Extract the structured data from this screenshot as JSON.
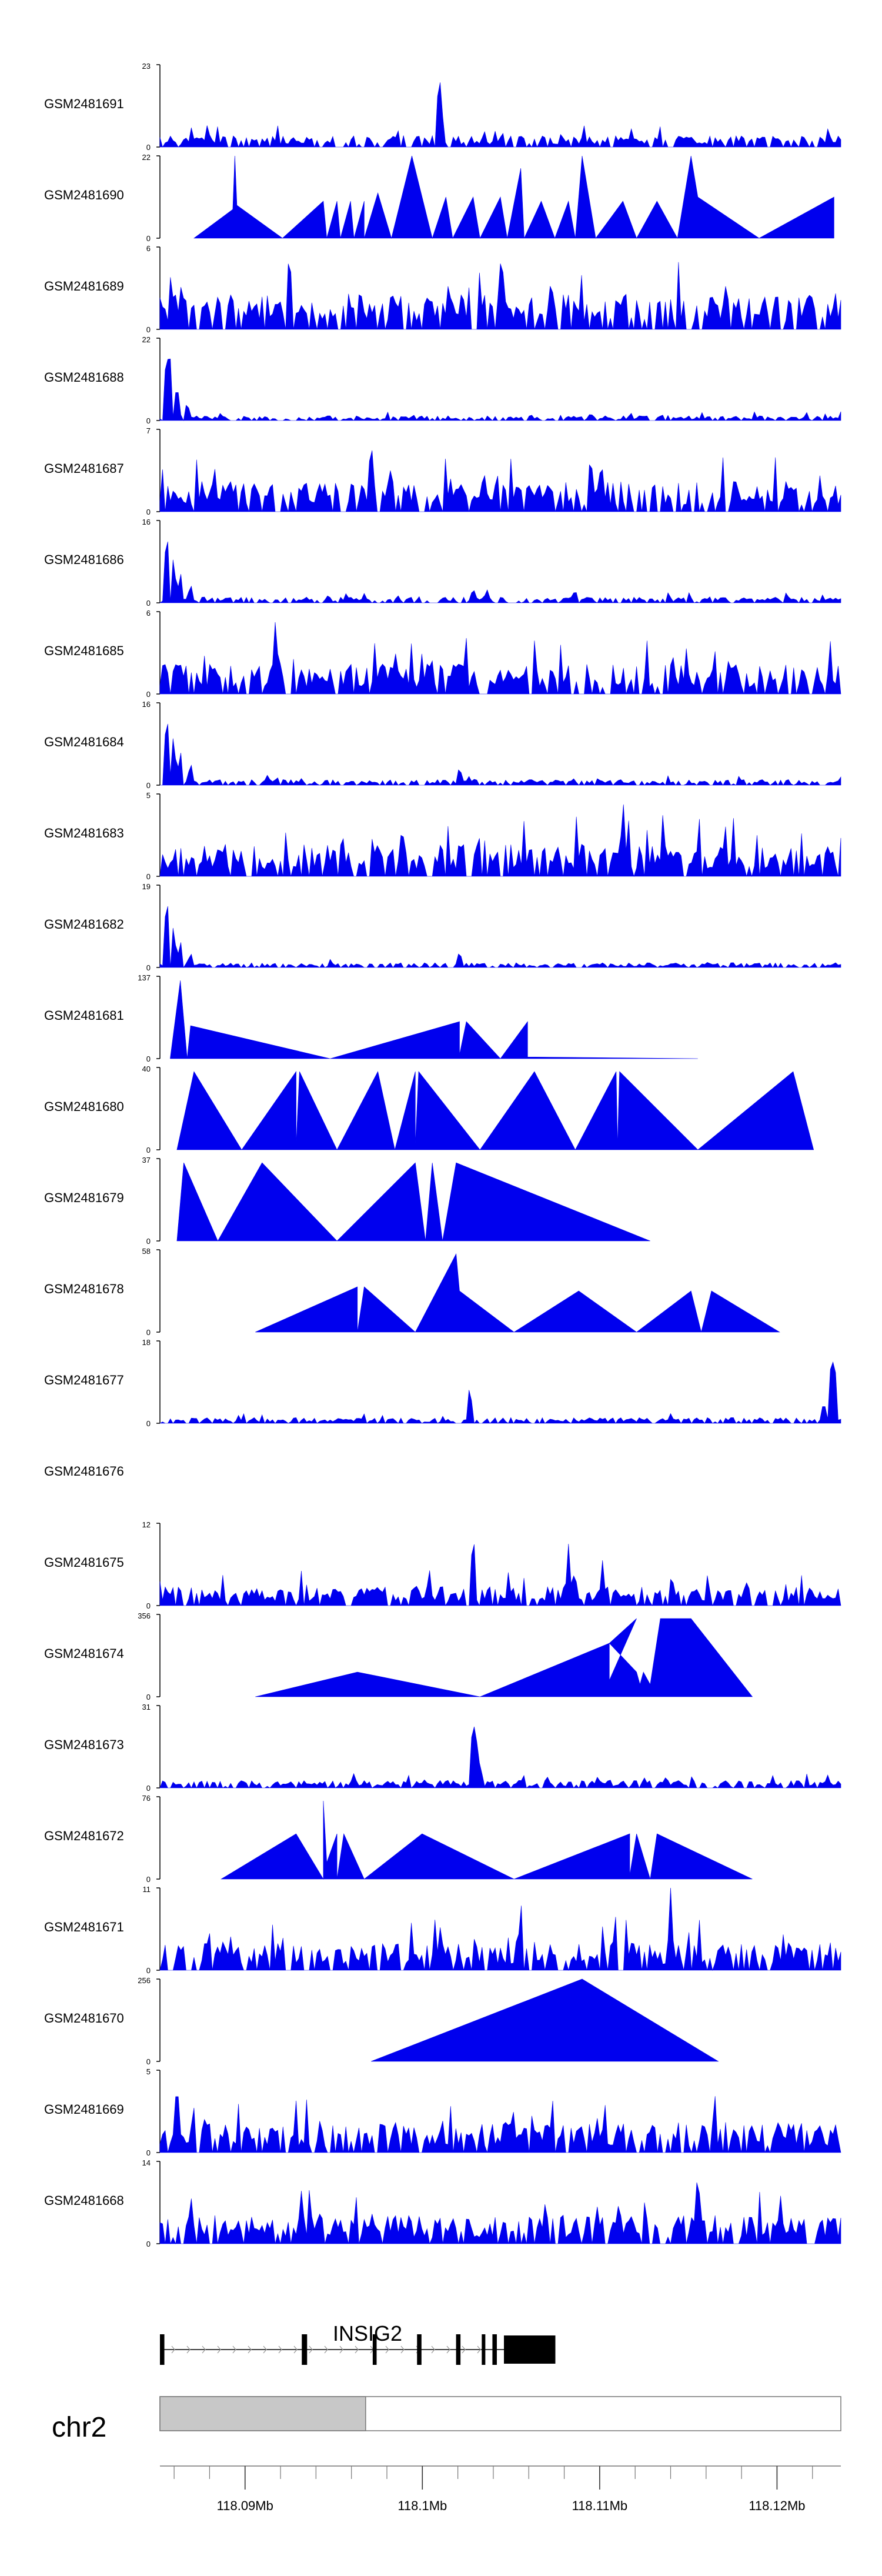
{
  "chart_data": {
    "type": "area",
    "title": "",
    "chromosome": "chr2",
    "gene": "INSIG2",
    "colors": {
      "signal": "#0000ee",
      "axis": "#000000",
      "ideogram": "#c8c8c8",
      "gene": "#000000",
      "intron_arrow": "#9a9a9a"
    },
    "x_range_mb": [
      118.0852,
      118.1236
    ],
    "x_ticks": [
      {
        "value": 118.09,
        "label": "118.09Mb"
      },
      {
        "value": 118.1,
        "label": "118.1Mb"
      },
      {
        "value": 118.11,
        "label": "118.11Mb"
      },
      {
        "value": 118.12,
        "label": "118.12Mb"
      }
    ],
    "ideogram_shaded_range_mb": [
      118.0852,
      118.0968
    ],
    "transcript": {
      "start_mb": 118.0852,
      "end_mb": 118.1075,
      "exons": [
        {
          "s": 118.0852,
          "e": 118.08545,
          "kind": "thin"
        },
        {
          "s": 118.0932,
          "e": 118.0935,
          "kind": "thin"
        },
        {
          "s": 118.0972,
          "e": 118.09742,
          "kind": "thin"
        },
        {
          "s": 118.0997,
          "e": 118.09995,
          "kind": "thin"
        },
        {
          "s": 118.1019,
          "e": 118.10215,
          "kind": "thin"
        },
        {
          "s": 118.10335,
          "e": 118.10355,
          "kind": "thin"
        },
        {
          "s": 118.10395,
          "e": 118.1042,
          "kind": "thin"
        },
        {
          "s": 118.1046,
          "e": 118.1075,
          "kind": "utr"
        }
      ]
    },
    "tracks": [
      {
        "name": "GSM2481691",
        "ymax": 23,
        "style": "dense",
        "seed": 11,
        "base": 0.12,
        "peaks": [
          [
            0.07,
            0.3
          ],
          [
            0.41,
            1.0
          ],
          [
            0.412,
            0.85
          ]
        ]
      },
      {
        "name": "GSM2481690",
        "ymax": 22,
        "style": "sparse",
        "seed": 0,
        "pts": [
          [
            0.05,
            0
          ],
          [
            0.107,
            0.35
          ],
          [
            0.11,
            1.0
          ],
          [
            0.113,
            0.4
          ],
          [
            0.18,
            0
          ],
          [
            0.24,
            0.45
          ],
          [
            0.245,
            0
          ],
          [
            0.26,
            0.45
          ],
          [
            0.265,
            0
          ],
          [
            0.28,
            0.45
          ],
          [
            0.285,
            0
          ],
          [
            0.3,
            0.45
          ],
          [
            0.3,
            0
          ],
          [
            0.32,
            0.55
          ],
          [
            0.34,
            0
          ],
          [
            0.37,
            1.0
          ],
          [
            0.4,
            0
          ],
          [
            0.42,
            0.5
          ],
          [
            0.43,
            0
          ],
          [
            0.46,
            0.5
          ],
          [
            0.47,
            0
          ],
          [
            0.5,
            0.5
          ],
          [
            0.51,
            0
          ],
          [
            0.53,
            0.85
          ],
          [
            0.535,
            0
          ],
          [
            0.56,
            0.45
          ],
          [
            0.58,
            0
          ],
          [
            0.6,
            0.45
          ],
          [
            0.61,
            0
          ],
          [
            0.62,
            1.0
          ],
          [
            0.64,
            0
          ],
          [
            0.68,
            0.45
          ],
          [
            0.7,
            0
          ],
          [
            0.73,
            0.45
          ],
          [
            0.76,
            0
          ],
          [
            0.78,
            1.0
          ],
          [
            0.79,
            0.5
          ],
          [
            0.88,
            0
          ],
          [
            0.99,
            0.5
          ],
          [
            0.99,
            0
          ]
        ]
      },
      {
        "name": "GSM2481689",
        "ymax": 6,
        "style": "dense",
        "seed": 23,
        "base": 0.38,
        "peaks": []
      },
      {
        "name": "GSM2481688",
        "ymax": 22,
        "style": "dense",
        "seed": 31,
        "base": 0.05,
        "peaks": [
          [
            0.01,
            1.0
          ],
          [
            0.015,
            0.8
          ],
          [
            0.025,
            0.5
          ],
          [
            0.04,
            0.25
          ]
        ]
      },
      {
        "name": "GSM2481687",
        "ymax": 7,
        "style": "dense",
        "seed": 41,
        "base": 0.32,
        "peaks": [
          [
            0.31,
            1.0
          ]
        ]
      },
      {
        "name": "GSM2481686",
        "ymax": 16,
        "style": "dense",
        "seed": 53,
        "base": 0.06,
        "peaks": [
          [
            0.01,
            1.0
          ],
          [
            0.02,
            0.6
          ],
          [
            0.03,
            0.4
          ],
          [
            0.045,
            0.25
          ],
          [
            0.46,
            0.2
          ],
          [
            0.48,
            0.18
          ]
        ]
      },
      {
        "name": "GSM2481685",
        "ymax": 6,
        "style": "dense",
        "seed": 61,
        "base": 0.32,
        "peaks": [
          [
            0.17,
            1.0
          ]
        ]
      },
      {
        "name": "GSM2481684",
        "ymax": 16,
        "style": "dense",
        "seed": 71,
        "base": 0.06,
        "peaks": [
          [
            0.01,
            1.0
          ],
          [
            0.02,
            0.65
          ],
          [
            0.03,
            0.45
          ],
          [
            0.045,
            0.3
          ],
          [
            0.44,
            0.25
          ]
        ]
      },
      {
        "name": "GSM2481683",
        "ymax": 5,
        "style": "dense",
        "seed": 83,
        "base": 0.34,
        "peaks": [
          [
            0.68,
            1.0
          ]
        ]
      },
      {
        "name": "GSM2481682",
        "ymax": 19,
        "style": "dense",
        "seed": 97,
        "base": 0.05,
        "peaks": [
          [
            0.01,
            1.0
          ],
          [
            0.02,
            0.55
          ],
          [
            0.03,
            0.35
          ],
          [
            0.045,
            0.2
          ],
          [
            0.44,
            0.22
          ]
        ]
      },
      {
        "name": "GSM2481681",
        "ymax": 137,
        "style": "sparse",
        "seed": 0,
        "pts": [
          [
            0.015,
            0
          ],
          [
            0.03,
            0.95
          ],
          [
            0.04,
            0
          ],
          [
            0.045,
            0.4
          ],
          [
            0.25,
            0
          ],
          [
            0.44,
            0.45
          ],
          [
            0.44,
            0.05
          ],
          [
            0.45,
            0.45
          ],
          [
            0.5,
            0
          ],
          [
            0.54,
            0.45
          ],
          [
            0.54,
            0.02
          ],
          [
            0.79,
            0
          ]
        ]
      },
      {
        "name": "GSM2481680",
        "ymax": 40,
        "style": "sparse",
        "seed": 0,
        "pts": [
          [
            0.025,
            0
          ],
          [
            0.05,
            0.95
          ],
          [
            0.12,
            0
          ],
          [
            0.2,
            0.95
          ],
          [
            0.2,
            0.05
          ],
          [
            0.205,
            0.95
          ],
          [
            0.26,
            0
          ],
          [
            0.32,
            0.95
          ],
          [
            0.345,
            0
          ],
          [
            0.375,
            0.95
          ],
          [
            0.375,
            0.05
          ],
          [
            0.38,
            0.95
          ],
          [
            0.47,
            0
          ],
          [
            0.55,
            0.95
          ],
          [
            0.61,
            0
          ],
          [
            0.67,
            0.95
          ],
          [
            0.672,
            0.05
          ],
          [
            0.675,
            0.95
          ],
          [
            0.79,
            0
          ],
          [
            0.93,
            0.95
          ],
          [
            0.96,
            0
          ]
        ]
      },
      {
        "name": "GSM2481679",
        "ymax": 37,
        "style": "sparse",
        "seed": 0,
        "pts": [
          [
            0.025,
            0
          ],
          [
            0.035,
            0.95
          ],
          [
            0.085,
            0
          ],
          [
            0.15,
            0.95
          ],
          [
            0.26,
            0
          ],
          [
            0.375,
            0.95
          ],
          [
            0.39,
            0
          ],
          [
            0.4,
            0.95
          ],
          [
            0.415,
            0
          ],
          [
            0.435,
            0.95
          ],
          [
            0.72,
            0
          ]
        ]
      },
      {
        "name": "GSM2481678",
        "ymax": 58,
        "style": "sparse",
        "seed": 0,
        "pts": [
          [
            0.14,
            0
          ],
          [
            0.29,
            0.55
          ],
          [
            0.29,
            0
          ],
          [
            0.3,
            0.55
          ],
          [
            0.375,
            0
          ],
          [
            0.435,
            0.95
          ],
          [
            0.44,
            0.5
          ],
          [
            0.52,
            0
          ],
          [
            0.615,
            0.5
          ],
          [
            0.7,
            0
          ],
          [
            0.78,
            0.5
          ],
          [
            0.795,
            0
          ],
          [
            0.81,
            0.5
          ],
          [
            0.91,
            0
          ]
        ]
      },
      {
        "name": "GSM2481677",
        "ymax": 18,
        "style": "dense",
        "seed": 113,
        "base": 0.06,
        "peaks": [
          [
            0.455,
            0.5
          ],
          [
            0.99,
            1.0
          ],
          [
            0.985,
            0.7
          ],
          [
            0.975,
            0.3
          ]
        ]
      },
      {
        "name": "GSM2481676",
        "ymax": null,
        "style": "empty"
      },
      {
        "name": "GSM2481675",
        "ymax": 12,
        "style": "dense",
        "seed": 127,
        "base": 0.2,
        "peaks": [
          [
            0.46,
            1.0
          ],
          [
            0.6,
            0.75
          ],
          [
            0.65,
            0.55
          ]
        ]
      },
      {
        "name": "GSM2481674",
        "ymax": 356,
        "style": "sparse",
        "seed": 0,
        "pts": [
          [
            0.14,
            0
          ],
          [
            0.29,
            0.3
          ],
          [
            0.47,
            0
          ],
          [
            0.66,
            0.65
          ],
          [
            0.66,
            0.2
          ],
          [
            0.7,
            0.95
          ],
          [
            0.66,
            0.65
          ],
          [
            0.7,
            0.3
          ],
          [
            0.71,
            0
          ],
          [
            0.7,
            0
          ],
          [
            0.71,
            0.3
          ],
          [
            0.72,
            0.15
          ],
          [
            0.735,
            0.95
          ],
          [
            0.78,
            0.95
          ],
          [
            0.87,
            0
          ]
        ]
      },
      {
        "name": "GSM2481673",
        "ymax": 31,
        "style": "dense",
        "seed": 131,
        "base": 0.08,
        "peaks": [
          [
            0.46,
            1.0
          ],
          [
            0.465,
            0.6
          ],
          [
            0.47,
            0.35
          ],
          [
            0.9,
            0.15
          ]
        ]
      },
      {
        "name": "GSM2481672",
        "ymax": 76,
        "style": "sparse",
        "seed": 0,
        "pts": [
          [
            0.09,
            0
          ],
          [
            0.2,
            0.55
          ],
          [
            0.24,
            0
          ],
          [
            0.24,
            0.55
          ],
          [
            0.24,
            0.95
          ],
          [
            0.245,
            0.2
          ],
          [
            0.26,
            0.55
          ],
          [
            0.26,
            0
          ],
          [
            0.27,
            0.55
          ],
          [
            0.3,
            0
          ],
          [
            0.385,
            0.55
          ],
          [
            0.52,
            0
          ],
          [
            0.69,
            0.55
          ],
          [
            0.69,
            0.05
          ],
          [
            0.7,
            0.55
          ],
          [
            0.72,
            0
          ],
          [
            0.73,
            0.55
          ],
          [
            0.87,
            0
          ]
        ]
      },
      {
        "name": "GSM2481671",
        "ymax": 11,
        "style": "dense",
        "seed": 137,
        "base": 0.3,
        "peaks": [
          [
            0.75,
            1.0
          ],
          [
            0.53,
            0.9
          ]
        ]
      },
      {
        "name": "GSM2481670",
        "ymax": 256,
        "style": "sparse",
        "seed": 0,
        "pts": [
          [
            0.31,
            0
          ],
          [
            0.62,
            1.0
          ],
          [
            0.82,
            0
          ]
        ]
      },
      {
        "name": "GSM2481669",
        "ymax": 5,
        "style": "dense",
        "seed": 149,
        "base": 0.32,
        "peaks": [
          [
            0.025,
            1.0
          ]
        ]
      },
      {
        "name": "GSM2481668",
        "ymax": 14,
        "style": "dense",
        "seed": 151,
        "base": 0.3,
        "peaks": [
          [
            0.79,
            1.0
          ]
        ]
      }
    ]
  }
}
